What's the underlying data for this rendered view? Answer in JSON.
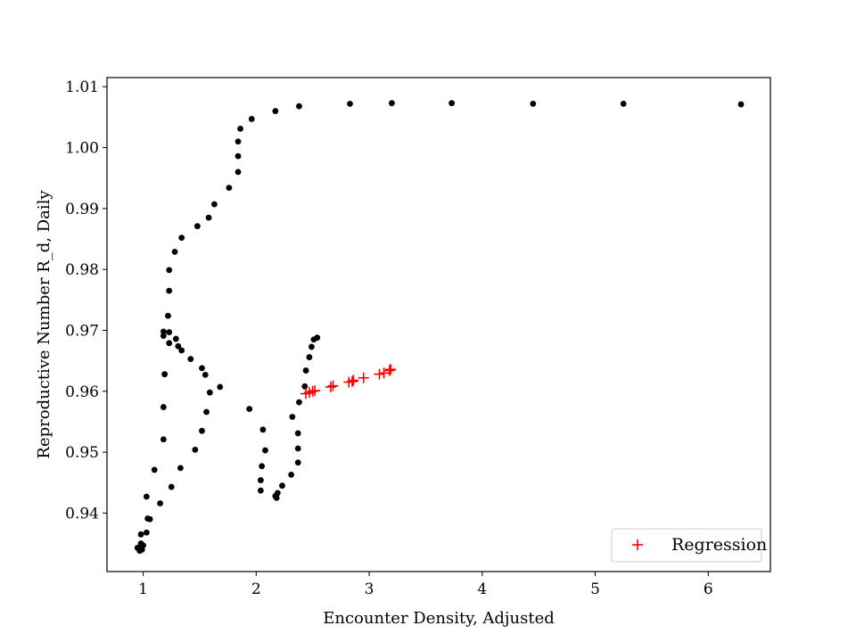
{
  "chart_data": {
    "type": "scatter",
    "title": "",
    "xlabel": "Encounter Density, Adjusted",
    "ylabel": "Reproductive Number R_d, Daily",
    "xlim": [
      0.68,
      6.55
    ],
    "ylim": [
      0.9304,
      1.0115
    ],
    "x_ticks": [
      1,
      2,
      3,
      4,
      5,
      6
    ],
    "y_ticks": [
      0.94,
      0.95,
      0.96,
      0.97,
      0.98,
      0.99,
      1.0,
      1.01
    ],
    "x_tick_labels": [
      "1",
      "2",
      "3",
      "4",
      "5",
      "6"
    ],
    "y_tick_labels": [
      "0.94",
      "0.95",
      "0.96",
      "0.97",
      "0.98",
      "0.99",
      "1.00",
      "1.01"
    ],
    "grid": false,
    "legend_position": "lower-right",
    "series": [
      {
        "marker": "dot",
        "color": "#000000",
        "points": [
          [
            0.95,
            0.9343
          ],
          [
            0.97,
            0.9338
          ],
          [
            0.99,
            0.934
          ],
          [
            0.98,
            0.935
          ],
          [
            1.0,
            0.9347
          ],
          [
            0.98,
            0.9365
          ],
          [
            1.03,
            0.9368
          ],
          [
            1.04,
            0.9391
          ],
          [
            1.06,
            0.939
          ],
          [
            1.03,
            0.9427
          ],
          [
            1.1,
            0.9471
          ],
          [
            1.15,
            0.9416
          ],
          [
            1.18,
            0.9521
          ],
          [
            1.25,
            0.9443
          ],
          [
            1.18,
            0.9574
          ],
          [
            1.33,
            0.9474
          ],
          [
            1.19,
            0.9628
          ],
          [
            1.18,
            0.9691
          ],
          [
            1.18,
            0.9698
          ],
          [
            1.22,
            0.9724
          ],
          [
            1.23,
            0.9697
          ],
          [
            1.23,
            0.9679
          ],
          [
            1.29,
            0.9686
          ],
          [
            1.31,
            0.9674
          ],
          [
            1.34,
            0.9667
          ],
          [
            1.42,
            0.9653
          ],
          [
            1.23,
            0.9765
          ],
          [
            1.23,
            0.9799
          ],
          [
            1.28,
            0.9829
          ],
          [
            1.34,
            0.9852
          ],
          [
            1.48,
            0.9871
          ],
          [
            1.58,
            0.9885
          ],
          [
            1.63,
            0.9907
          ],
          [
            1.76,
            0.9934
          ],
          [
            1.84,
            0.996
          ],
          [
            1.84,
            0.9986
          ],
          [
            1.84,
            1.001
          ],
          [
            1.86,
            1.0031
          ],
          [
            1.96,
            1.0047
          ],
          [
            2.17,
            1.006
          ],
          [
            2.38,
            1.0068
          ],
          [
            2.83,
            1.0072
          ],
          [
            3.2,
            1.0073
          ],
          [
            3.73,
            1.0073
          ],
          [
            4.45,
            1.0072
          ],
          [
            5.25,
            1.0072
          ],
          [
            6.29,
            1.0071
          ],
          [
            1.52,
            0.9638
          ],
          [
            1.55,
            0.9627
          ],
          [
            1.59,
            0.9598
          ],
          [
            1.68,
            0.9607
          ],
          [
            1.56,
            0.9566
          ],
          [
            1.52,
            0.9535
          ],
          [
            1.46,
            0.9504
          ],
          [
            1.94,
            0.9571
          ],
          [
            2.06,
            0.9537
          ],
          [
            2.08,
            0.9503
          ],
          [
            2.05,
            0.9477
          ],
          [
            2.04,
            0.9454
          ],
          [
            2.04,
            0.9437
          ],
          [
            2.18,
            0.9425
          ],
          [
            2.17,
            0.9428
          ],
          [
            2.19,
            0.9433
          ],
          [
            2.23,
            0.9445
          ],
          [
            2.31,
            0.9463
          ],
          [
            2.37,
            0.9483
          ],
          [
            2.37,
            0.9506
          ],
          [
            2.37,
            0.9531
          ],
          [
            2.32,
            0.9558
          ],
          [
            2.38,
            0.9582
          ],
          [
            2.43,
            0.9608
          ],
          [
            2.44,
            0.9634
          ],
          [
            2.47,
            0.9656
          ],
          [
            2.49,
            0.9673
          ],
          [
            2.51,
            0.9685
          ],
          [
            2.54,
            0.9688
          ]
        ]
      },
      {
        "name": "Regression",
        "marker": "plus",
        "color": "#ff0000",
        "points": [
          [
            2.44,
            0.9596
          ],
          [
            2.47,
            0.9598
          ],
          [
            2.5,
            0.96
          ],
          [
            2.52,
            0.9601
          ],
          [
            2.66,
            0.9607
          ],
          [
            2.68,
            0.9609
          ],
          [
            2.82,
            0.9615
          ],
          [
            2.85,
            0.9616
          ],
          [
            2.86,
            0.9618
          ],
          [
            2.95,
            0.9622
          ],
          [
            3.09,
            0.9628
          ],
          [
            3.13,
            0.963
          ],
          [
            3.18,
            0.9634
          ],
          [
            3.19,
            0.9636
          ]
        ]
      }
    ]
  }
}
